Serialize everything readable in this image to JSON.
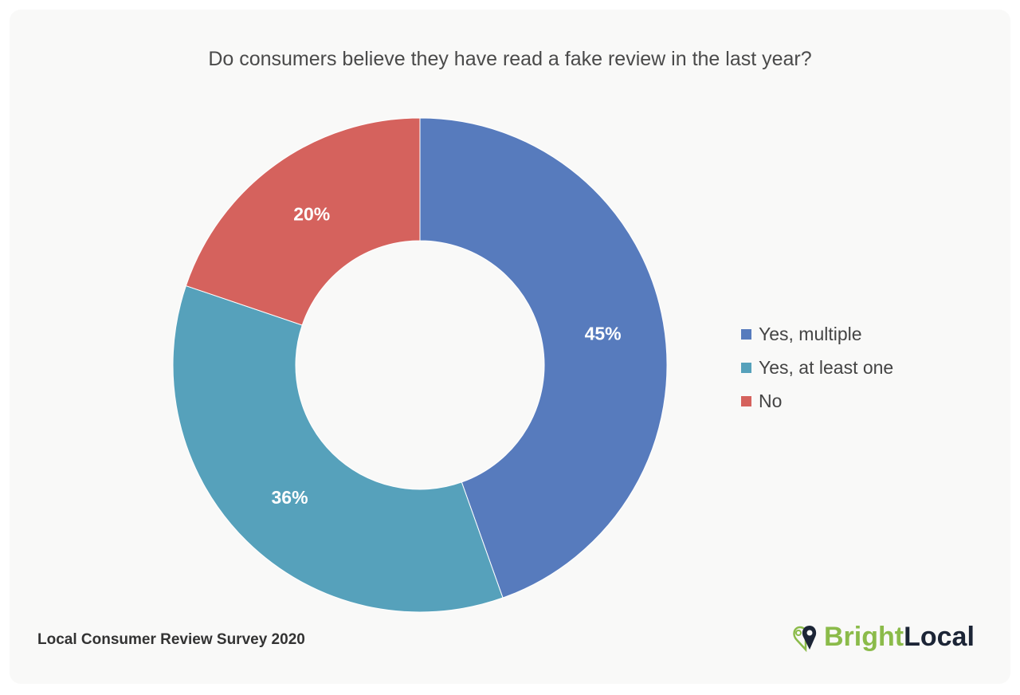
{
  "chart_data": {
    "type": "pie",
    "donut": true,
    "title": "Do consumers believe they have read a fake review in the last year?",
    "slices": [
      {
        "label": "Yes, multiple",
        "value": 45,
        "display": "45%",
        "color": "#577bbd"
      },
      {
        "label": "Yes, at least one",
        "value": 36,
        "display": "36%",
        "color": "#56a1bb"
      },
      {
        "label": "No",
        "value": 20,
        "display": "20%",
        "color": "#d5625d"
      }
    ],
    "legend_position": "right"
  },
  "source": "Local Consumer Review Survey 2020",
  "logo": {
    "part1": "Bright",
    "part2": "Local"
  }
}
